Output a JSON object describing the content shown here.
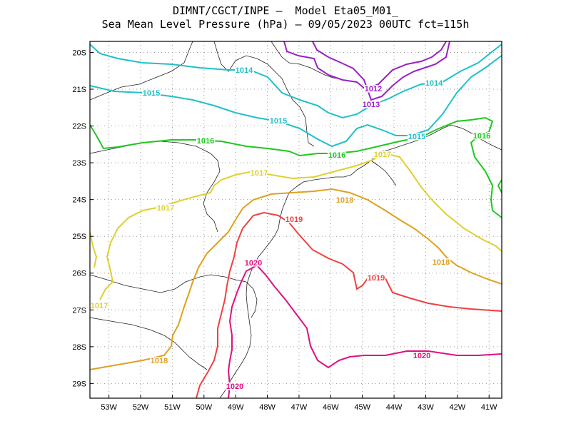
{
  "title_line1": "DIMNT/CGCT/INPE –  Model Eta05_M01_",
  "title_line2": "Sea Mean Level Pressure (hPa) – 09/05/2023 00UTC fct=115h",
  "axes": {
    "lat_labels": [
      "20S",
      "21S",
      "22S",
      "23S",
      "24S",
      "25S",
      "26S",
      "27S",
      "28S",
      "29S"
    ],
    "lon_labels": [
      "53W",
      "52W",
      "51W",
      "50W",
      "49W",
      "48W",
      "47W",
      "46W",
      "45W",
      "44W",
      "43W",
      "42W",
      "41W"
    ]
  },
  "chart_data": {
    "type": "contour_map",
    "variable": "Sea Mean Level Pressure",
    "units": "hPa",
    "lon_range": [
      -53.6,
      -40.6
    ],
    "lat_range": [
      -29.4,
      -19.7
    ],
    "levels": [
      {
        "value": 1012,
        "color": "#9a1fc8",
        "labels": [
          "1012",
          "1013"
        ]
      },
      {
        "value": 1014,
        "color": "#20c0c8",
        "labels": [
          "1014",
          "1015",
          "1014",
          "1015",
          "1015"
        ]
      },
      {
        "value": 1016,
        "color": "#20c820",
        "labels": [
          "1016",
          "1016",
          "1016"
        ]
      },
      {
        "value": 1017,
        "color": "#e0d030",
        "labels": [
          "1017",
          "1017",
          "1017",
          "1017"
        ]
      },
      {
        "value": 1018,
        "color": "#e0a020",
        "labels": [
          "1018",
          "1018",
          "1018"
        ]
      },
      {
        "value": 1019,
        "color": "#f04040",
        "labels": [
          "1019",
          "1019"
        ]
      },
      {
        "value": 1020,
        "color": "#e01080",
        "labels": [
          "1020",
          "1020",
          "1020"
        ]
      }
    ]
  }
}
